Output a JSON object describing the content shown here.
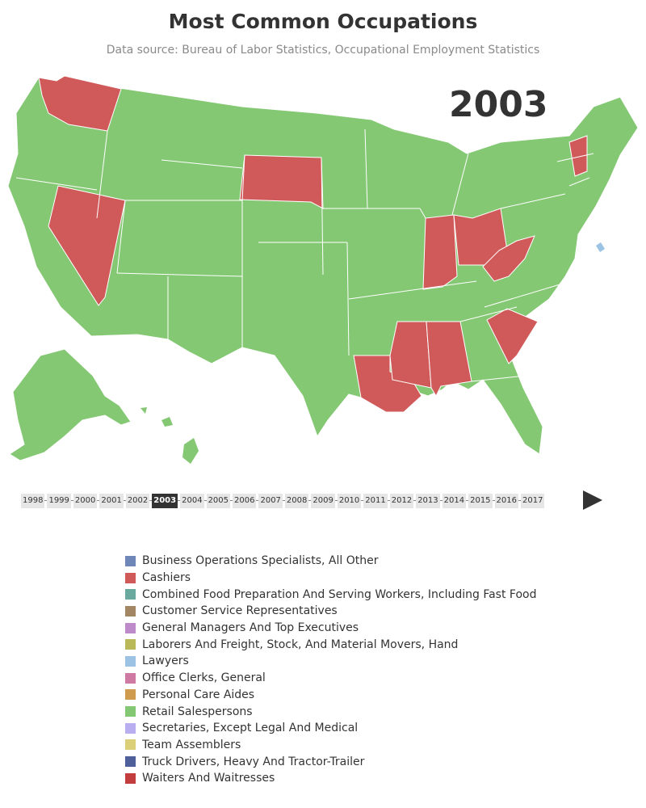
{
  "title": "Most Common Occupations",
  "subtitle": "Data source: Bureau of Labor Statistics, Occupational Employment Statistics",
  "selected_year": "2003",
  "timeline_years": [
    "1998",
    "1999",
    "2000",
    "2001",
    "2002",
    "2003",
    "2004",
    "2005",
    "2006",
    "2007",
    "2008",
    "2009",
    "2010",
    "2011",
    "2012",
    "2013",
    "2014",
    "2015",
    "2016",
    "2017"
  ],
  "colors": {
    "retail": "#84c874",
    "cashiers": "#d05a5a",
    "lawyers": "#9cc3e3"
  },
  "legend": [
    {
      "label": "Business Operations Specialists, All Other",
      "color": "#6f86b8"
    },
    {
      "label": "Cashiers",
      "color": "#d05a5a"
    },
    {
      "label": "Combined Food Preparation And Serving Workers, Including Fast Food",
      "color": "#6aaa9e"
    },
    {
      "label": "Customer Service Representatives",
      "color": "#a38764"
    },
    {
      "label": "General Managers And Top Executives",
      "color": "#bd8bc9"
    },
    {
      "label": "Laborers And Freight, Stock, And Material Movers, Hand",
      "color": "#b9b95a"
    },
    {
      "label": "Lawyers",
      "color": "#9cc3e3"
    },
    {
      "label": "Office Clerks, General",
      "color": "#cf7aa3"
    },
    {
      "label": "Personal Care Aides",
      "color": "#cf9c4f"
    },
    {
      "label": "Retail Salespersons",
      "color": "#84c874"
    },
    {
      "label": "Secretaries, Except Legal And Medical",
      "color": "#b8aef0"
    },
    {
      "label": "Team Assemblers",
      "color": "#dccf79"
    },
    {
      "label": "Truck Drivers, Heavy And Tractor-Trailer",
      "color": "#4f5f99"
    },
    {
      "label": "Waiters And Waitresses",
      "color": "#c23e3e"
    }
  ],
  "map_data": {
    "Cashiers": [
      "Washington",
      "Nevada",
      "South Dakota",
      "Indiana",
      "Ohio",
      "West Virginia",
      "Vermont",
      "South Carolina",
      "Louisiana",
      "Mississippi",
      "Alabama"
    ],
    "Lawyers": [
      "District of Columbia"
    ],
    "Retail Salespersons": "all other states"
  }
}
